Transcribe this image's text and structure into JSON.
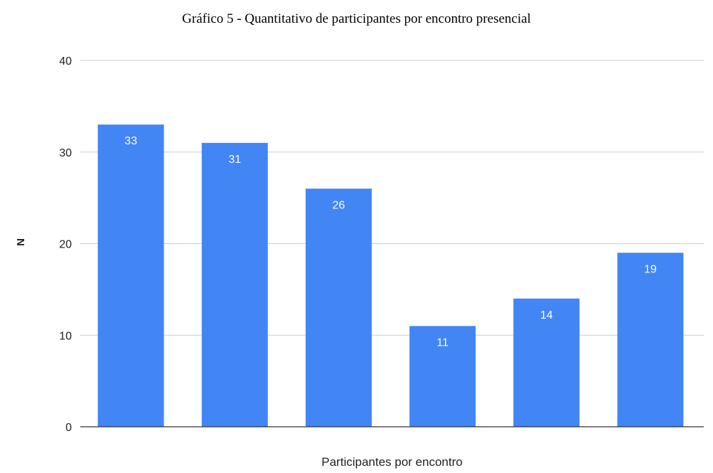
{
  "chart_data": {
    "type": "bar",
    "title": "Gráfico 5 - Quantitativo de participantes por encontro presencial",
    "xlabel": "Participantes por encontro",
    "ylabel": "N",
    "categories": [
      "",
      "",
      "",
      "",
      "",
      ""
    ],
    "values": [
      33,
      31,
      26,
      11,
      14,
      19
    ],
    "ylim": [
      0,
      40
    ],
    "yticks": [
      0,
      10,
      20,
      30,
      40
    ],
    "grid": true,
    "data_labels": true,
    "bar_color": "#4285f4",
    "grid_color": "#cccccc",
    "axis_color": "#333333"
  }
}
